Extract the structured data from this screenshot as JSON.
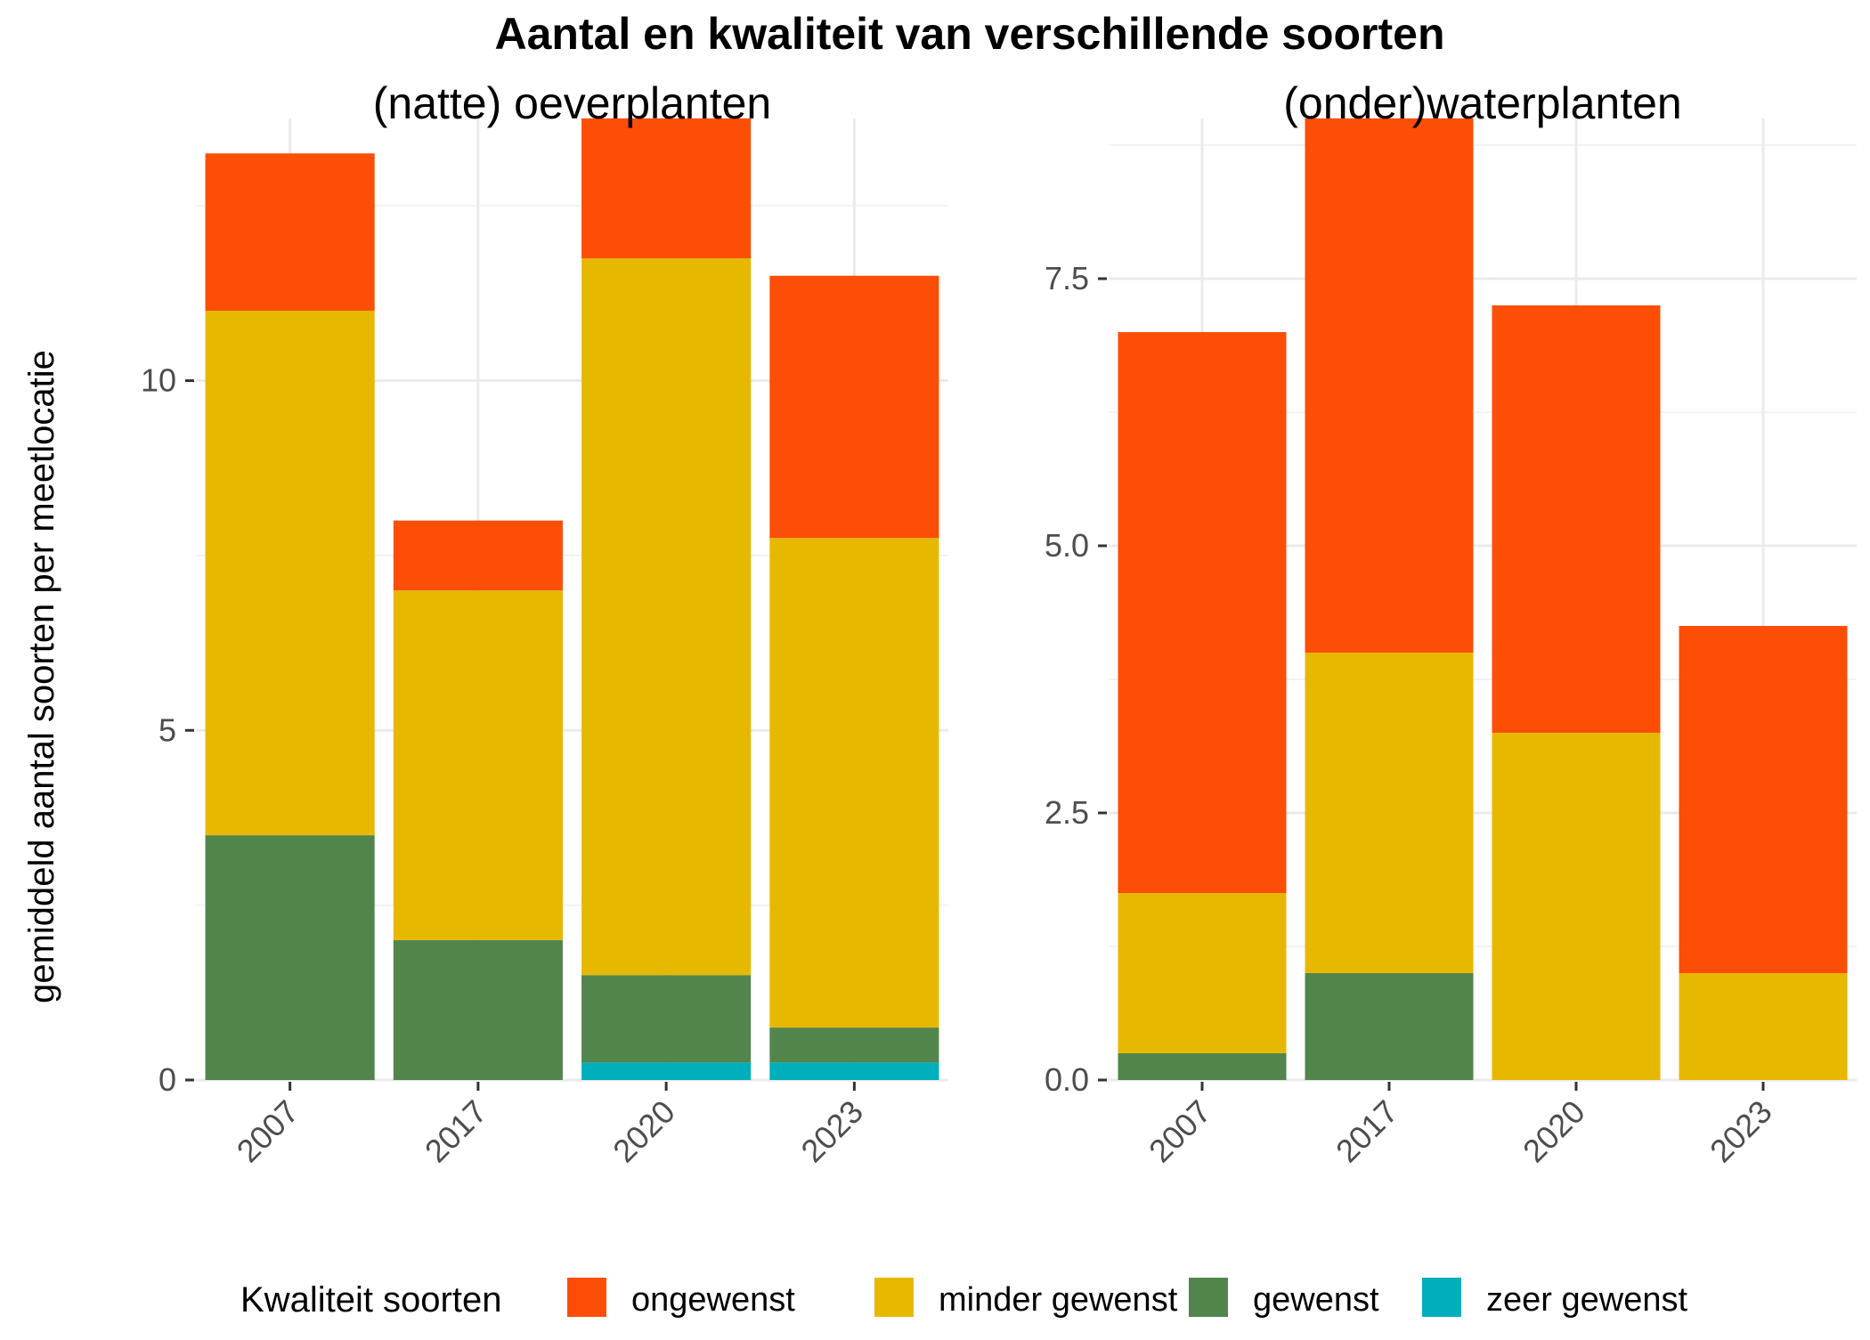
{
  "title": "Aantal en kwaliteit van verschillende soorten",
  "ylabel": "gemiddeld aantal soorten per meetlocatie",
  "legend": {
    "title": "Kwaliteit soorten",
    "position": "bottom",
    "items": [
      {
        "label": "ongewenst",
        "color": "#FC4E07"
      },
      {
        "label": "minder gewenst",
        "color": "#E7B800"
      },
      {
        "label": "gewenst",
        "color": "#52854C"
      },
      {
        "label": "zeer gewenst",
        "color": "#00AFBB"
      }
    ]
  },
  "chart_data": [
    {
      "type": "bar",
      "stacked": true,
      "title": "(natte) oeverplanten",
      "categories": [
        "2007",
        "2017",
        "2020",
        "2023"
      ],
      "ylim": [
        0,
        13.75
      ],
      "yticks": [
        "0",
        "5",
        "10"
      ],
      "ytick_values": [
        0,
        5,
        10
      ],
      "grid": true,
      "series": [
        {
          "name": "zeer gewenst",
          "color": "#00AFBB",
          "values": [
            0,
            0,
            0.25,
            0.25
          ]
        },
        {
          "name": "gewenst",
          "color": "#52854C",
          "values": [
            3.5,
            2,
            1.25,
            0.5
          ]
        },
        {
          "name": "minder gewenst",
          "color": "#E7B800",
          "values": [
            7.5,
            5,
            10.25,
            7
          ]
        },
        {
          "name": "ongewenst",
          "color": "#FC4E07",
          "values": [
            2.25,
            1,
            2,
            3.75
          ]
        }
      ]
    },
    {
      "type": "bar",
      "stacked": true,
      "title": "(onder)waterplanten",
      "categories": [
        "2007",
        "2017",
        "2020",
        "2023"
      ],
      "ylim": [
        0,
        9
      ],
      "yticks": [
        "0.0",
        "2.5",
        "5.0",
        "7.5"
      ],
      "ytick_values": [
        0,
        2.5,
        5,
        7.5
      ],
      "grid": true,
      "series": [
        {
          "name": "zeer gewenst",
          "color": "#00AFBB",
          "values": [
            0,
            0,
            0,
            0
          ]
        },
        {
          "name": "gewenst",
          "color": "#52854C",
          "values": [
            0.25,
            1,
            0,
            0
          ]
        },
        {
          "name": "minder gewenst",
          "color": "#E7B800",
          "values": [
            1.5,
            3,
            3.25,
            1
          ]
        },
        {
          "name": "ongewenst",
          "color": "#FC4E07",
          "values": [
            5.25,
            5,
            4,
            3.25
          ]
        }
      ]
    }
  ]
}
